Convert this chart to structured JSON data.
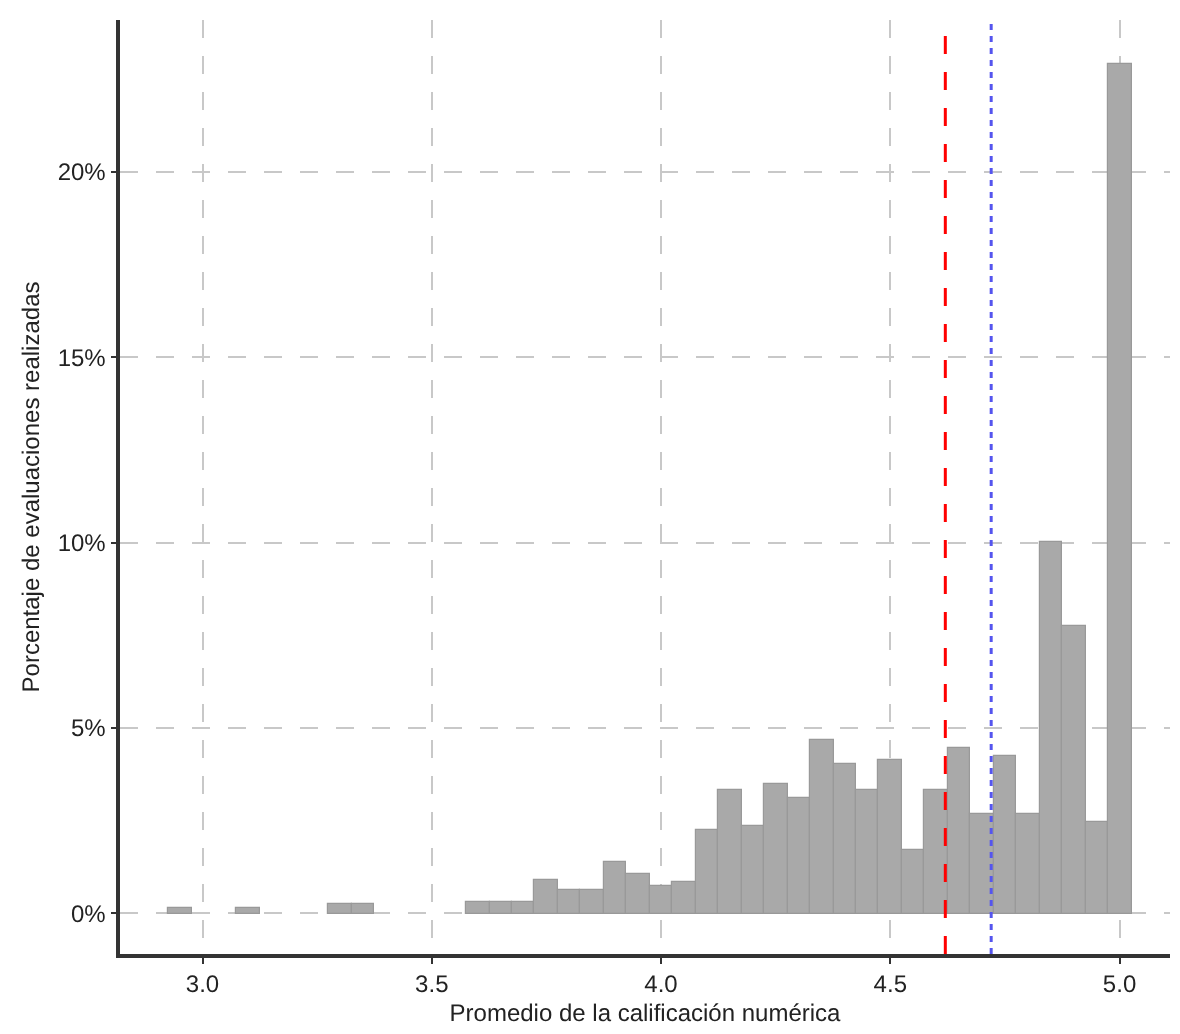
{
  "chart_data": {
    "type": "histogram",
    "xlabel": "Promedio de la calificación numérica",
    "ylabel": "Porcentaje de evaluaciones realizadas",
    "bins": [
      2.925,
      2.975,
      3.025,
      3.075,
      3.125,
      3.175,
      3.225,
      3.275,
      3.325,
      3.375,
      3.425,
      3.475,
      3.525,
      3.575,
      3.625,
      3.675,
      3.725,
      3.775,
      3.825,
      3.875,
      3.925,
      3.975,
      4.025,
      4.075,
      4.125,
      4.175,
      4.225,
      4.275,
      4.325,
      4.375,
      4.425,
      4.475,
      4.525,
      4.575,
      4.625,
      4.675,
      4.725,
      4.775,
      4.825,
      4.875,
      4.925,
      4.975,
      5.025
    ],
    "values": [
      0.12,
      0,
      0,
      0.12,
      0,
      0,
      0,
      0.23,
      0.23,
      0,
      0,
      0,
      0,
      0.32,
      0.32,
      0.32,
      0.87,
      0.64,
      0.64,
      1.4,
      1.06,
      0.76,
      0.85,
      2.23,
      3.3,
      2.36,
      3.51,
      3.1,
      4.66,
      4.04,
      3.3,
      4.16,
      1.7,
      3.3,
      4.45,
      2.68,
      4.26,
      2.68,
      10.02,
      7.75,
      2.46,
      22.92
    ],
    "color": "#a9a9a9",
    "xlim": [
      2.82,
      5.11
    ],
    "xticks": [
      {
        "value": 3,
        "label": "3.0"
      },
      3.5,
      {
        "value": 4,
        "label": "4.0"
      },
      4.5,
      {
        "value": 5,
        "label": "5.0"
      }
    ],
    "ylim": [
      -1.1,
      24.1
    ],
    "yticks": [
      {
        "value": 0,
        "label": "0%"
      },
      {
        "value": 5,
        "label": "5%"
      },
      {
        "value": 10,
        "label": "10%"
      },
      {
        "value": 15,
        "label": "15%"
      },
      {
        "value": 20,
        "label": "20%"
      }
    ],
    "grid": true,
    "ref_lines": [
      {
        "axis": "x",
        "value": 4.62,
        "color": "#ff0000",
        "line_style": "dashed"
      },
      {
        "axis": "x",
        "value": 4.72,
        "color": "#5555ee",
        "line_style": "dotted"
      }
    ]
  }
}
